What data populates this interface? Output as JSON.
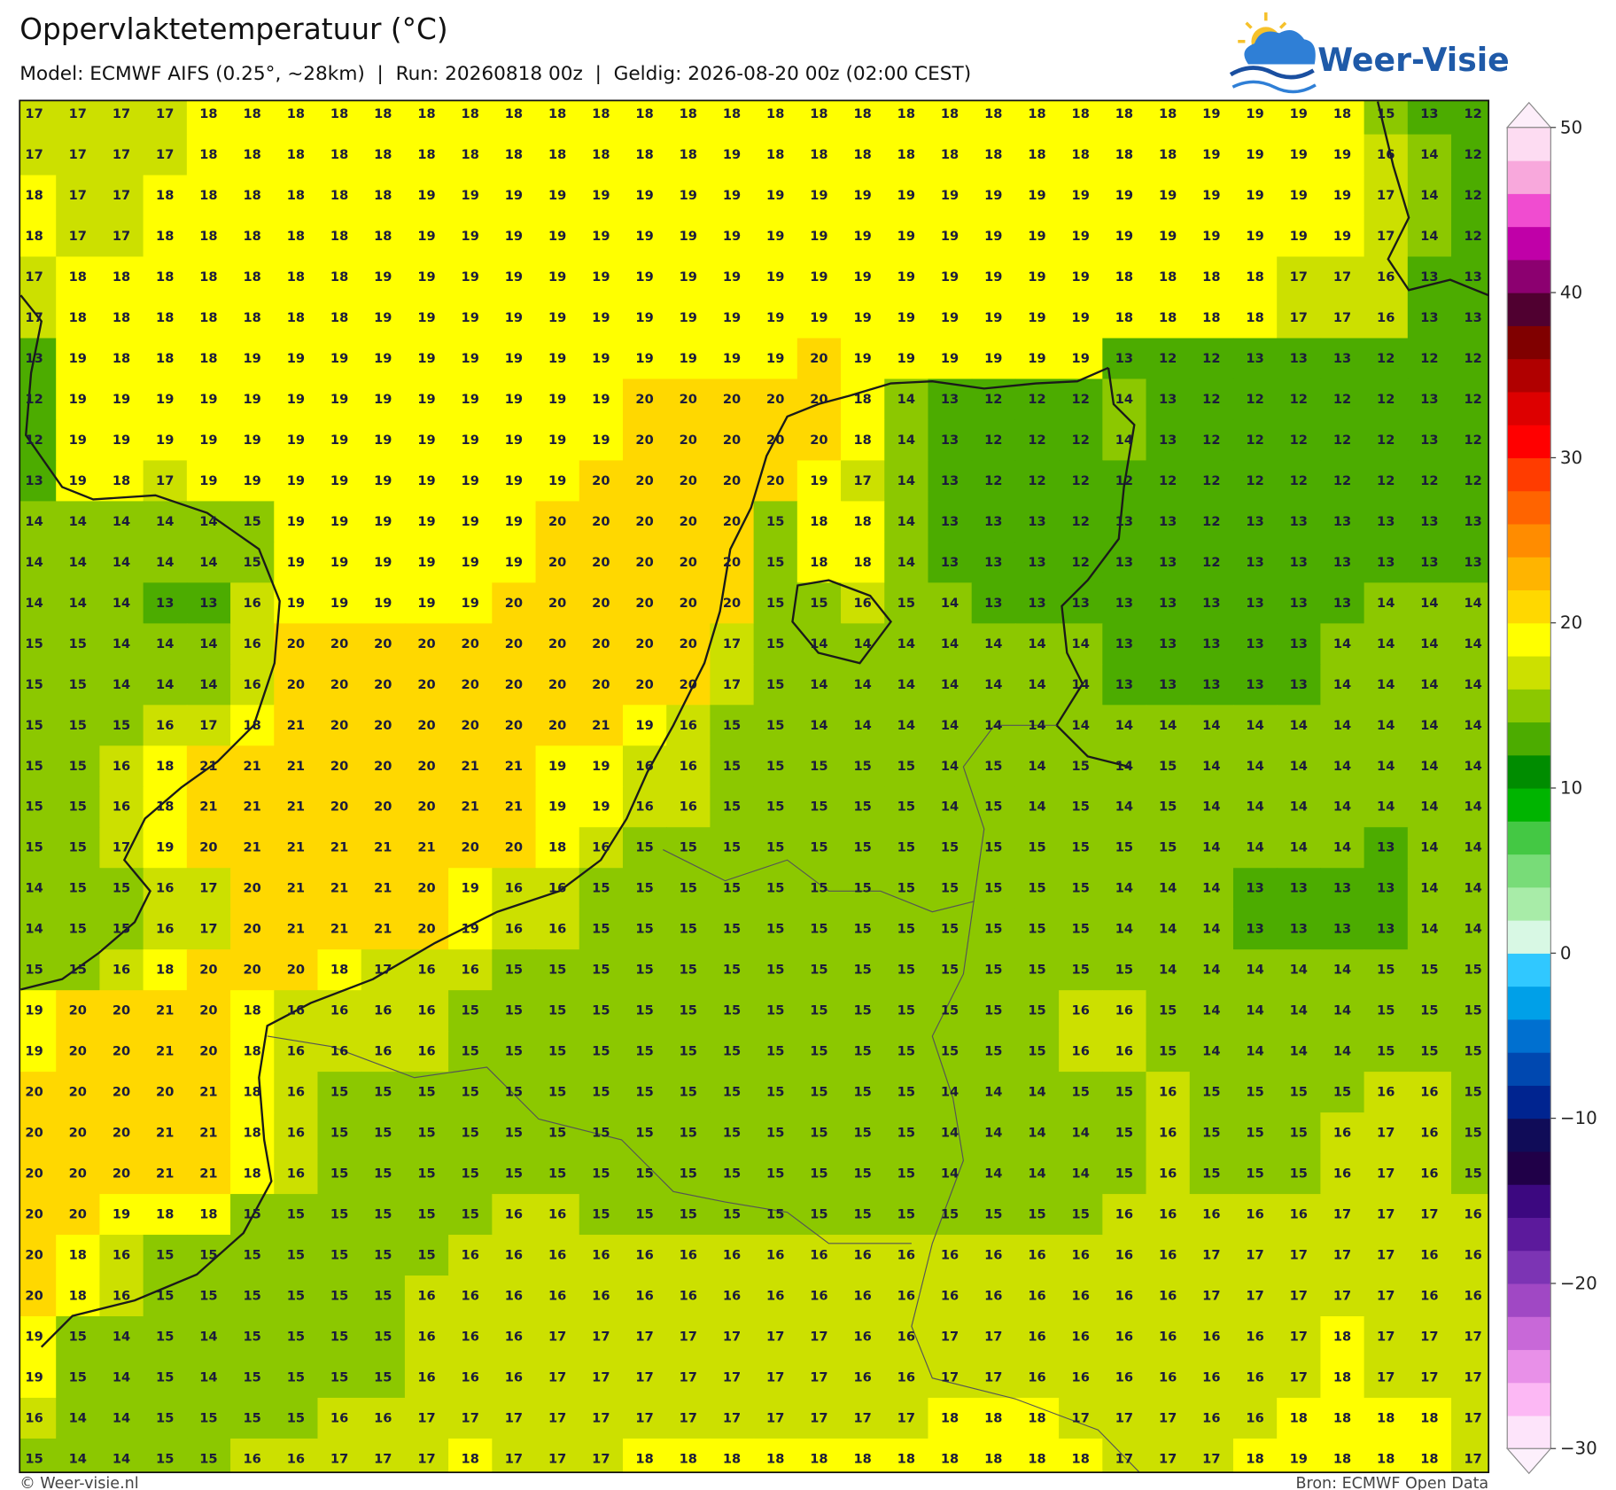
{
  "header": {
    "title": "Oppervlaktetemperatuur (°C)",
    "subtitle": "Model: ECMWF AIFS (0.25°, ~28km)  |  Run: 20260818 00z  |  Geldig: 2026-08-20 00z (02:00 CEST)"
  },
  "logo": "Weer-Visie",
  "grid": {
    "rows": [
      [
        17,
        17,
        17,
        17,
        18,
        18,
        18,
        18,
        18,
        18,
        18,
        18,
        18,
        18,
        18,
        18,
        18,
        18,
        18,
        18,
        18,
        18,
        18,
        18,
        18,
        18,
        18,
        19,
        19,
        19,
        18,
        15,
        13,
        12
      ],
      [
        17,
        17,
        17,
        17,
        18,
        18,
        18,
        18,
        18,
        18,
        18,
        18,
        18,
        18,
        18,
        18,
        19,
        18,
        18,
        18,
        18,
        18,
        18,
        18,
        18,
        18,
        18,
        19,
        19,
        19,
        19,
        16,
        14,
        12
      ],
      [
        18,
        17,
        17,
        18,
        18,
        18,
        18,
        18,
        18,
        19,
        19,
        19,
        19,
        19,
        19,
        19,
        19,
        19,
        19,
        19,
        19,
        19,
        19,
        19,
        19,
        19,
        19,
        19,
        19,
        19,
        19,
        17,
        14,
        12
      ],
      [
        18,
        17,
        17,
        18,
        18,
        18,
        18,
        18,
        18,
        19,
        19,
        19,
        19,
        19,
        19,
        19,
        19,
        19,
        19,
        19,
        19,
        19,
        19,
        19,
        19,
        19,
        19,
        19,
        19,
        19,
        19,
        17,
        14,
        12
      ],
      [
        17,
        18,
        18,
        18,
        18,
        18,
        18,
        18,
        19,
        19,
        19,
        19,
        19,
        19,
        19,
        19,
        19,
        19,
        19,
        19,
        19,
        19,
        19,
        19,
        19,
        18,
        18,
        18,
        18,
        17,
        17,
        16,
        13,
        13
      ],
      [
        17,
        18,
        18,
        18,
        18,
        18,
        18,
        18,
        19,
        19,
        19,
        19,
        19,
        19,
        19,
        19,
        19,
        19,
        19,
        19,
        19,
        19,
        19,
        19,
        19,
        18,
        18,
        18,
        18,
        17,
        17,
        16,
        13,
        13
      ],
      [
        13,
        19,
        18,
        18,
        18,
        19,
        19,
        19,
        19,
        19,
        19,
        19,
        19,
        19,
        19,
        19,
        19,
        19,
        20,
        19,
        19,
        19,
        19,
        19,
        19,
        13,
        12,
        12,
        13,
        13,
        13,
        12,
        12,
        12
      ],
      [
        12,
        19,
        19,
        19,
        19,
        19,
        19,
        19,
        19,
        19,
        19,
        19,
        19,
        19,
        20,
        20,
        20,
        20,
        20,
        18,
        14,
        13,
        12,
        12,
        12,
        14,
        13,
        12,
        12,
        12,
        12,
        12,
        13,
        12
      ],
      [
        12,
        19,
        19,
        19,
        19,
        19,
        19,
        19,
        19,
        19,
        19,
        19,
        19,
        19,
        20,
        20,
        20,
        20,
        20,
        18,
        14,
        13,
        12,
        12,
        12,
        14,
        13,
        12,
        12,
        12,
        12,
        12,
        13,
        12
      ],
      [
        13,
        19,
        18,
        17,
        19,
        19,
        19,
        19,
        19,
        19,
        19,
        19,
        19,
        20,
        20,
        20,
        20,
        20,
        19,
        17,
        14,
        13,
        12,
        12,
        12,
        12,
        12,
        12,
        12,
        12,
        12,
        12,
        12,
        12
      ],
      [
        14,
        14,
        14,
        14,
        14,
        15,
        19,
        19,
        19,
        19,
        19,
        19,
        20,
        20,
        20,
        20,
        20,
        15,
        18,
        18,
        14,
        13,
        13,
        13,
        12,
        13,
        13,
        12,
        13,
        13,
        13,
        13,
        13,
        13
      ],
      [
        14,
        14,
        14,
        14,
        14,
        15,
        19,
        19,
        19,
        19,
        19,
        19,
        20,
        20,
        20,
        20,
        20,
        15,
        18,
        18,
        14,
        13,
        13,
        13,
        12,
        13,
        13,
        12,
        13,
        13,
        13,
        13,
        13,
        13
      ],
      [
        14,
        14,
        14,
        13,
        13,
        16,
        19,
        19,
        19,
        19,
        19,
        20,
        20,
        20,
        20,
        20,
        20,
        15,
        15,
        16,
        15,
        14,
        13,
        13,
        13,
        13,
        13,
        13,
        13,
        13,
        13,
        14,
        14,
        14
      ],
      [
        15,
        15,
        14,
        14,
        14,
        16,
        20,
        20,
        20,
        20,
        20,
        20,
        20,
        20,
        20,
        20,
        17,
        15,
        14,
        14,
        14,
        14,
        14,
        14,
        14,
        13,
        13,
        13,
        13,
        13,
        14,
        14,
        14,
        14
      ],
      [
        15,
        15,
        14,
        14,
        14,
        16,
        20,
        20,
        20,
        20,
        20,
        20,
        20,
        20,
        20,
        20,
        17,
        15,
        14,
        14,
        14,
        14,
        14,
        14,
        14,
        13,
        13,
        13,
        13,
        13,
        14,
        14,
        14,
        14
      ],
      [
        15,
        15,
        15,
        16,
        17,
        18,
        21,
        20,
        20,
        20,
        20,
        20,
        20,
        21,
        19,
        16,
        15,
        15,
        14,
        14,
        14,
        14,
        14,
        14,
        14,
        14,
        14,
        14,
        14,
        14,
        14,
        14,
        14,
        14
      ],
      [
        15,
        15,
        16,
        18,
        21,
        21,
        21,
        20,
        20,
        20,
        21,
        21,
        19,
        19,
        16,
        16,
        15,
        15,
        15,
        15,
        15,
        14,
        15,
        14,
        15,
        14,
        15,
        14,
        14,
        14,
        14,
        14,
        14,
        14
      ],
      [
        15,
        15,
        16,
        18,
        21,
        21,
        21,
        20,
        20,
        20,
        21,
        21,
        19,
        19,
        16,
        16,
        15,
        15,
        15,
        15,
        15,
        14,
        15,
        14,
        15,
        14,
        15,
        14,
        14,
        14,
        14,
        14,
        14,
        14
      ],
      [
        15,
        15,
        17,
        19,
        20,
        21,
        21,
        21,
        21,
        21,
        20,
        20,
        18,
        16,
        15,
        15,
        15,
        15,
        15,
        15,
        15,
        15,
        15,
        15,
        15,
        15,
        15,
        14,
        14,
        14,
        14,
        13,
        14,
        14
      ],
      [
        14,
        15,
        15,
        16,
        17,
        20,
        21,
        21,
        21,
        20,
        19,
        16,
        16,
        15,
        15,
        15,
        15,
        15,
        15,
        15,
        15,
        15,
        15,
        15,
        15,
        14,
        14,
        14,
        13,
        13,
        13,
        13,
        14,
        14
      ],
      [
        14,
        15,
        15,
        16,
        17,
        20,
        21,
        21,
        21,
        20,
        19,
        16,
        16,
        15,
        15,
        15,
        15,
        15,
        15,
        15,
        15,
        15,
        15,
        15,
        15,
        14,
        14,
        14,
        13,
        13,
        13,
        13,
        14,
        14
      ],
      [
        15,
        15,
        16,
        18,
        20,
        20,
        20,
        18,
        17,
        16,
        16,
        15,
        15,
        15,
        15,
        15,
        15,
        15,
        15,
        15,
        15,
        15,
        15,
        15,
        15,
        15,
        14,
        14,
        14,
        14,
        14,
        15,
        15,
        15
      ],
      [
        19,
        20,
        20,
        21,
        20,
        18,
        16,
        16,
        16,
        16,
        15,
        15,
        15,
        15,
        15,
        15,
        15,
        15,
        15,
        15,
        15,
        15,
        15,
        15,
        16,
        16,
        15,
        14,
        14,
        14,
        14,
        15,
        15,
        15
      ],
      [
        19,
        20,
        20,
        21,
        20,
        18,
        16,
        16,
        16,
        16,
        15,
        15,
        15,
        15,
        15,
        15,
        15,
        15,
        15,
        15,
        15,
        15,
        15,
        15,
        16,
        16,
        15,
        14,
        14,
        14,
        14,
        15,
        15,
        15
      ],
      [
        20,
        20,
        20,
        20,
        21,
        18,
        16,
        15,
        15,
        15,
        15,
        15,
        15,
        15,
        15,
        15,
        15,
        15,
        15,
        15,
        15,
        14,
        14,
        14,
        15,
        15,
        16,
        15,
        15,
        15,
        15,
        16,
        16,
        15
      ],
      [
        20,
        20,
        20,
        21,
        21,
        18,
        16,
        15,
        15,
        15,
        15,
        15,
        15,
        15,
        15,
        15,
        15,
        15,
        15,
        15,
        15,
        14,
        14,
        14,
        14,
        15,
        16,
        15,
        15,
        15,
        16,
        17,
        16,
        15
      ],
      [
        20,
        20,
        20,
        21,
        21,
        18,
        16,
        15,
        15,
        15,
        15,
        15,
        15,
        15,
        15,
        15,
        15,
        15,
        15,
        15,
        15,
        14,
        14,
        14,
        14,
        15,
        16,
        15,
        15,
        15,
        16,
        17,
        16,
        15
      ],
      [
        20,
        20,
        19,
        18,
        18,
        15,
        15,
        15,
        15,
        15,
        15,
        16,
        16,
        15,
        15,
        15,
        15,
        15,
        15,
        15,
        15,
        15,
        15,
        15,
        15,
        16,
        16,
        16,
        16,
        16,
        17,
        17,
        17,
        16
      ],
      [
        20,
        18,
        16,
        15,
        15,
        15,
        15,
        15,
        15,
        15,
        16,
        16,
        16,
        16,
        16,
        16,
        16,
        16,
        16,
        16,
        16,
        16,
        16,
        16,
        16,
        16,
        16,
        17,
        17,
        17,
        17,
        17,
        16,
        16
      ],
      [
        20,
        18,
        16,
        15,
        15,
        15,
        15,
        15,
        15,
        16,
        16,
        16,
        16,
        16,
        16,
        16,
        16,
        16,
        16,
        16,
        16,
        16,
        16,
        16,
        16,
        16,
        16,
        17,
        17,
        17,
        17,
        17,
        16,
        16
      ],
      [
        19,
        15,
        14,
        15,
        14,
        15,
        15,
        15,
        15,
        16,
        16,
        16,
        17,
        17,
        17,
        17,
        17,
        17,
        17,
        16,
        16,
        17,
        17,
        16,
        16,
        16,
        16,
        16,
        16,
        17,
        18,
        17,
        17,
        17
      ],
      [
        19,
        15,
        14,
        15,
        14,
        15,
        15,
        15,
        15,
        16,
        16,
        16,
        17,
        17,
        17,
        17,
        17,
        17,
        17,
        16,
        16,
        17,
        17,
        16,
        16,
        16,
        16,
        16,
        16,
        17,
        18,
        17,
        17,
        17
      ],
      [
        16,
        14,
        14,
        15,
        15,
        15,
        15,
        16,
        16,
        17,
        17,
        17,
        17,
        17,
        17,
        17,
        17,
        17,
        17,
        17,
        17,
        18,
        18,
        18,
        17,
        17,
        17,
        16,
        16,
        18,
        18,
        18,
        18,
        17
      ],
      [
        15,
        14,
        14,
        15,
        15,
        16,
        16,
        17,
        17,
        17,
        18,
        17,
        17,
        17,
        18,
        18,
        18,
        18,
        18,
        18,
        18,
        18,
        18,
        18,
        18,
        17,
        17,
        17,
        18,
        19,
        18,
        18,
        18,
        17
      ]
    ]
  },
  "colorbar": {
    "lim": [
      -30,
      50
    ],
    "ticks": [
      50,
      40,
      30,
      20,
      10,
      0,
      {
        "value": -10,
        "label": "−10"
      },
      {
        "value": -20,
        "label": "−20"
      },
      {
        "value": -30,
        "label": "−30"
      }
    ],
    "colors": [
      "#fde4fa",
      "#fcb8f4",
      "#e890e8",
      "#c868d8",
      "#a048c4",
      "#7c34b4",
      "#5c1a9c",
      "#3c0880",
      "#200048",
      "#100c58",
      "#002490",
      "#0048b0",
      "#0070d0",
      "#00a0e8",
      "#30c8ff",
      "#d8f8e4",
      "#a8eca8",
      "#78dc78",
      "#44c844",
      "#00b400",
      "#008c00",
      "#4cac00",
      "#8cc800",
      "#cce000",
      "#ffff00",
      "#ffd800",
      "#ffb400",
      "#ff8c00",
      "#ff6400",
      "#ff3c00",
      "#ff0000",
      "#dd0000",
      "#b00000",
      "#800000",
      "#500030",
      "#8c0070",
      "#c000a8",
      "#f04cd0",
      "#f8a8dc",
      "#fddcf2"
    ]
  },
  "footer": {
    "left": "© Weer-visie.nl",
    "right": "Bron: ECMWF Open Data"
  }
}
